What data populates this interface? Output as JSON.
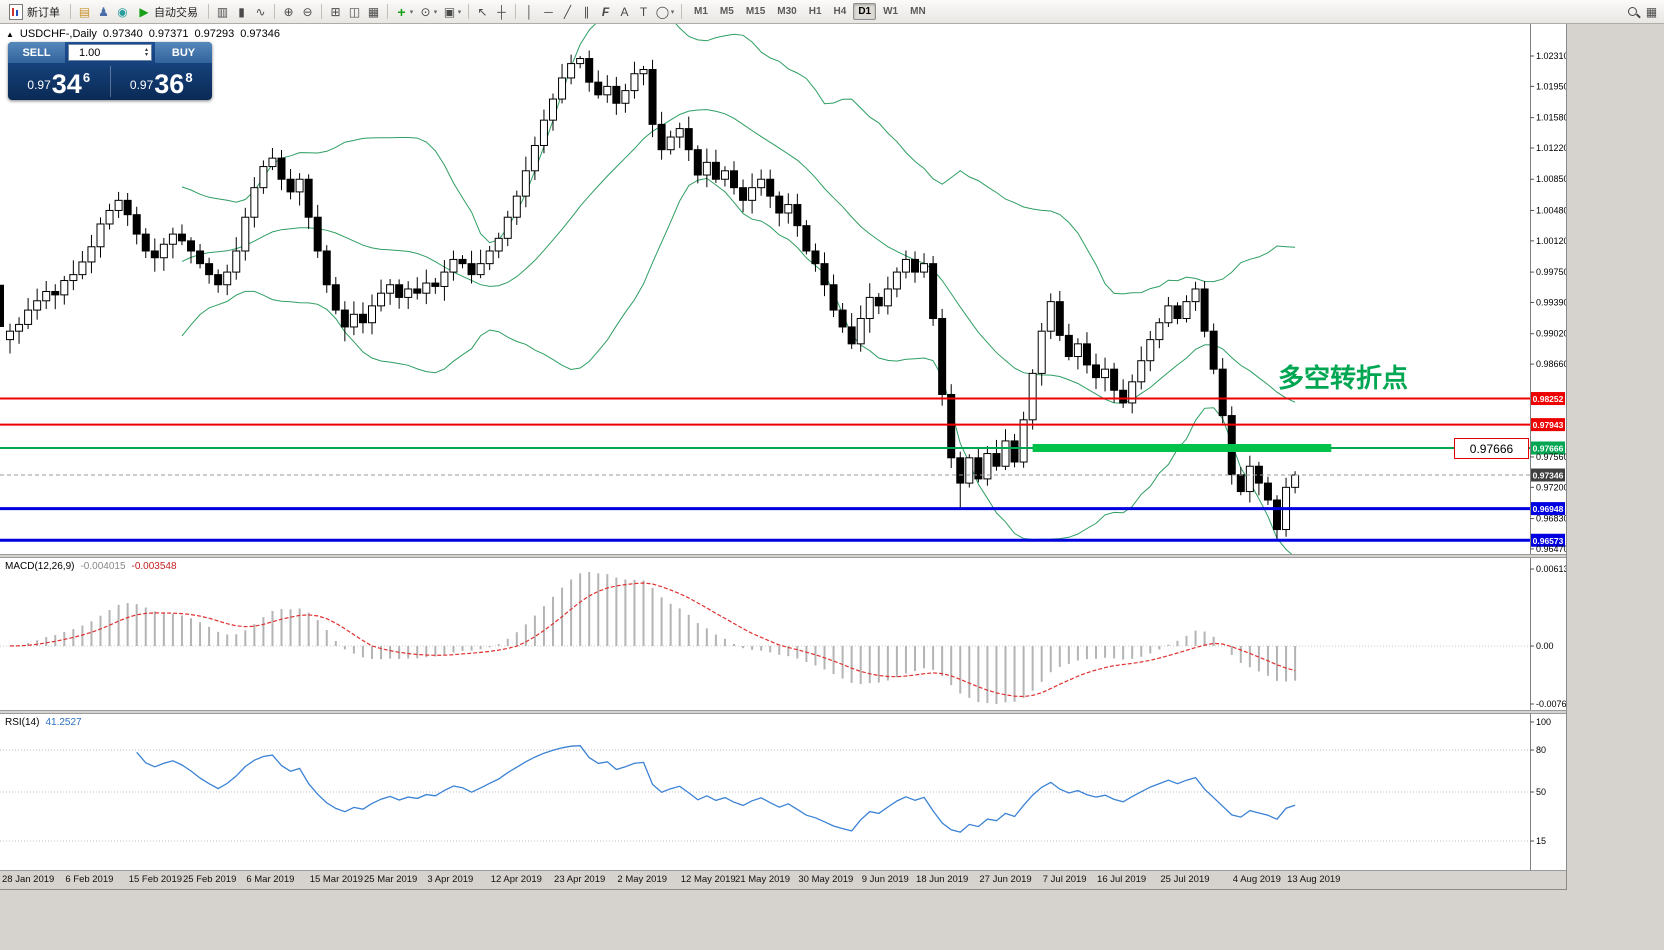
{
  "toolbar": {
    "new_order": "新订单",
    "auto_trading": "自动交易",
    "timeframes": [
      "M1",
      "M5",
      "M15",
      "M30",
      "H1",
      "H4",
      "D1",
      "W1",
      "MN"
    ],
    "active_timeframe": "D1"
  },
  "icons": {
    "market_watch": "▤",
    "profile": "♟",
    "community": "◉",
    "play": "▶",
    "bars": "▥",
    "candles": "▮",
    "linechart": "∿",
    "zoom_in": "⊕",
    "zoom_out": "⊖",
    "tile": "⊞",
    "cascade": "◫",
    "arrange": "▦",
    "indicators": "+",
    "periods": "⊙",
    "template": "▣",
    "cursor": "↖",
    "crosshair": "┼",
    "vline": "│",
    "hline": "─",
    "trendline": "╱",
    "channel": "∥",
    "fibo": "F",
    "text_tool": "A",
    "label_tool": "T",
    "shapes": "◯",
    "dropdown": "▾"
  },
  "symbol_header": {
    "marker": "▲",
    "title": "USDCHF-,Daily",
    "open": "0.97340",
    "high": "0.97371",
    "low": "0.97293",
    "close": "0.97346"
  },
  "trade_panel": {
    "sell_label": "SELL",
    "buy_label": "BUY",
    "volume": "1.00",
    "sell": {
      "prefix": "0.97",
      "big": "34",
      "sup": "6"
    },
    "buy": {
      "prefix": "0.97",
      "big": "36",
      "sup": "8"
    }
  },
  "chart_data": {
    "type": "candlestick",
    "symbol": "USDCHF",
    "timeframe": "Daily",
    "candles": {
      "first_open": 0.9895,
      "closes": [
        0.9905,
        0.9913,
        0.993,
        0.9941,
        0.9952,
        0.9948,
        0.9965,
        0.9972,
        0.9987,
        1.0005,
        1.0032,
        1.0048,
        1.006,
        1.0043,
        1.002,
        1.0,
        0.9992,
        1.0008,
        1.002,
        1.0012,
        1.0,
        0.9985,
        0.9972,
        0.996,
        0.9975,
        1.0,
        1.004,
        1.0075,
        1.01,
        1.011,
        1.0085,
        1.007,
        1.0085,
        1.004,
        1.0,
        0.996,
        0.993,
        0.991,
        0.9925,
        0.9915,
        0.9935,
        0.995,
        0.996,
        0.9945,
        0.9955,
        0.995,
        0.9962,
        0.9958,
        0.9975,
        0.999,
        0.9985,
        0.9972,
        0.9985,
        1.0,
        1.0015,
        1.004,
        1.0065,
        1.0095,
        1.0125,
        1.0155,
        1.018,
        1.0205,
        1.0222,
        1.0228,
        1.02,
        1.0185,
        1.0195,
        1.0175,
        1.019,
        1.021,
        1.0215,
        1.015,
        1.012,
        1.0135,
        1.0145,
        1.012,
        1.009,
        1.0105,
        1.0085,
        1.0095,
        1.0075,
        1.006,
        1.0075,
        1.0085,
        1.0065,
        1.0045,
        1.0055,
        1.003,
        1.0,
        0.9985,
        0.996,
        0.993,
        0.991,
        0.989,
        0.992,
        0.9945,
        0.9935,
        0.9955,
        0.9975,
        0.999,
        0.9975,
        0.9985,
        0.992,
        0.983,
        0.9755,
        0.9725,
        0.9755,
        0.973,
        0.976,
        0.9745,
        0.9775,
        0.975,
        0.98,
        0.9855,
        0.9905,
        0.994,
        0.99,
        0.9875,
        0.989,
        0.9865,
        0.985,
        0.986,
        0.9835,
        0.982,
        0.9845,
        0.987,
        0.9895,
        0.9915,
        0.9935,
        0.992,
        0.994,
        0.9955,
        0.9905,
        0.986,
        0.9805,
        0.9735,
        0.9715,
        0.9745,
        0.9725,
        0.9705,
        0.967,
        0.972,
        0.97346
      ],
      "high_overrides": {
        "12": 1.007,
        "29": 1.0122,
        "63": 1.0231
      },
      "low_overrides": {
        "37": 0.9893,
        "93": 0.9884,
        "105": 0.9696,
        "140": 0.9659
      }
    },
    "bollinger": {
      "period": 20,
      "deviation": 2,
      "color": "#2e9e63"
    },
    "axis": {
      "ticks": [
        {
          "v": 1.0231,
          "t": "1.02310"
        },
        {
          "v": 1.0195,
          "t": "1.01950"
        },
        {
          "v": 1.0158,
          "t": "1.01580"
        },
        {
          "v": 1.0122,
          "t": "1.01220"
        },
        {
          "v": 1.0085,
          "t": "1.00850"
        },
        {
          "v": 1.0048,
          "t": "1.00480"
        },
        {
          "v": 1.0012,
          "t": "1.00120"
        },
        {
          "v": 0.9975,
          "t": "0.99750"
        },
        {
          "v": 0.9939,
          "t": "0.99390"
        },
        {
          "v": 0.9902,
          "t": "0.99020"
        },
        {
          "v": 0.9866,
          "t": "0.98660"
        },
        {
          "v": 0.9756,
          "t": "0.97560"
        },
        {
          "v": 0.972,
          "t": "0.97200"
        },
        {
          "v": 0.9683,
          "t": "0.96830"
        },
        {
          "v": 0.9647,
          "t": "0.96470"
        }
      ]
    },
    "hlines": [
      {
        "v": 0.98252,
        "t": "0.98252",
        "color": "#ee0000",
        "w": 2
      },
      {
        "v": 0.97943,
        "t": "0.97943",
        "color": "#ee0000",
        "w": 2
      },
      {
        "v": 0.97666,
        "t": "0.97666",
        "color": "#00a651",
        "w": 2
      },
      {
        "v": 0.96948,
        "t": "0.96948",
        "color": "#0000e0",
        "w": 3
      },
      {
        "v": 0.96573,
        "t": "0.96573",
        "color": "#0000e0",
        "w": 3
      }
    ],
    "current_price": {
      "v": 0.97346,
      "t": "0.97346",
      "color": "#404040"
    },
    "highlight": {
      "v": 0.97666,
      "bar_start": 113,
      "bar_end": 146,
      "color": "#00c24a",
      "thickness": 8
    },
    "price_box": {
      "text": "0.97666"
    },
    "annotation": {
      "text": "多空转折点",
      "color": "#00a651"
    },
    "dates": [
      {
        "t": "28 Jan 2019",
        "bar": 0
      },
      {
        "t": "6 Feb 2019",
        "bar": 7
      },
      {
        "t": "15 Feb 2019",
        "bar": 14
      },
      {
        "t": "25 Feb 2019",
        "bar": 20
      },
      {
        "t": "6 Mar 2019",
        "bar": 27
      },
      {
        "t": "15 Mar 2019",
        "bar": 34
      },
      {
        "t": "25 Mar 2019",
        "bar": 40
      },
      {
        "t": "3 Apr 2019",
        "bar": 47
      },
      {
        "t": "12 Apr 2019",
        "bar": 54
      },
      {
        "t": "23 Apr 2019",
        "bar": 61
      },
      {
        "t": "2 May 2019",
        "bar": 68
      },
      {
        "t": "12 May 2019",
        "bar": 75
      },
      {
        "t": "21 May 2019",
        "bar": 81
      },
      {
        "t": "30 May 2019",
        "bar": 88
      },
      {
        "t": "9 Jun 2019",
        "bar": 95
      },
      {
        "t": "18 Jun 2019",
        "bar": 101
      },
      {
        "t": "27 Jun 2019",
        "bar": 108
      },
      {
        "t": "7 Jul 2019",
        "bar": 115
      },
      {
        "t": "16 Jul 2019",
        "bar": 121
      },
      {
        "t": "25 Jul 2019",
        "bar": 128
      },
      {
        "t": "4 Aug 2019",
        "bar": 136
      },
      {
        "t": "13 Aug 2019",
        "bar": 142
      }
    ],
    "macd": {
      "label": "MACD(12,26,9)",
      "fast": 12,
      "slow": 26,
      "signal": 9,
      "value_main": "-0.004015",
      "value_signal": "-0.003548",
      "axis_top": "0.00613",
      "axis_zero": "0.00",
      "axis_bottom": "-0.00761",
      "hist_color": "#b4b4b4",
      "signal_color": "#e03030"
    },
    "rsi": {
      "label": "RSI(14)",
      "period": 14,
      "value": "41.2527",
      "color": "#3b82d4",
      "levels": [
        80,
        50,
        15
      ],
      "axis": [
        {
          "v": 100,
          "t": "100"
        },
        {
          "v": 80,
          "t": "80"
        },
        {
          "v": 50,
          "t": "50"
        },
        {
          "v": 15,
          "t": "15"
        }
      ]
    }
  }
}
